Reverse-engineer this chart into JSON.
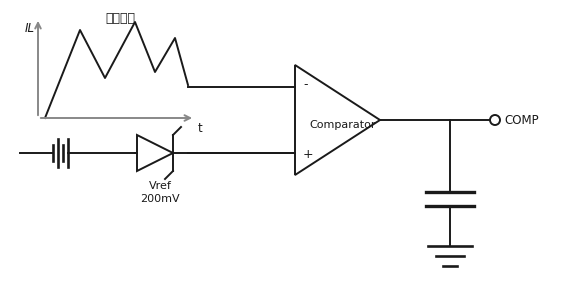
{
  "bg_color": "#ffffff",
  "line_color": "#1a1a1a",
  "gray_color": "#888888",
  "label_IL": "IL",
  "label_t": "t",
  "label_diangandianliu": "电感电流",
  "label_comparator": "Comparator",
  "label_minus": "-",
  "label_plus": "+",
  "label_COMP": "COMP",
  "label_Vref": "Vref\n200mV",
  "figsize": [
    5.68,
    2.97
  ],
  "dpi": 100
}
